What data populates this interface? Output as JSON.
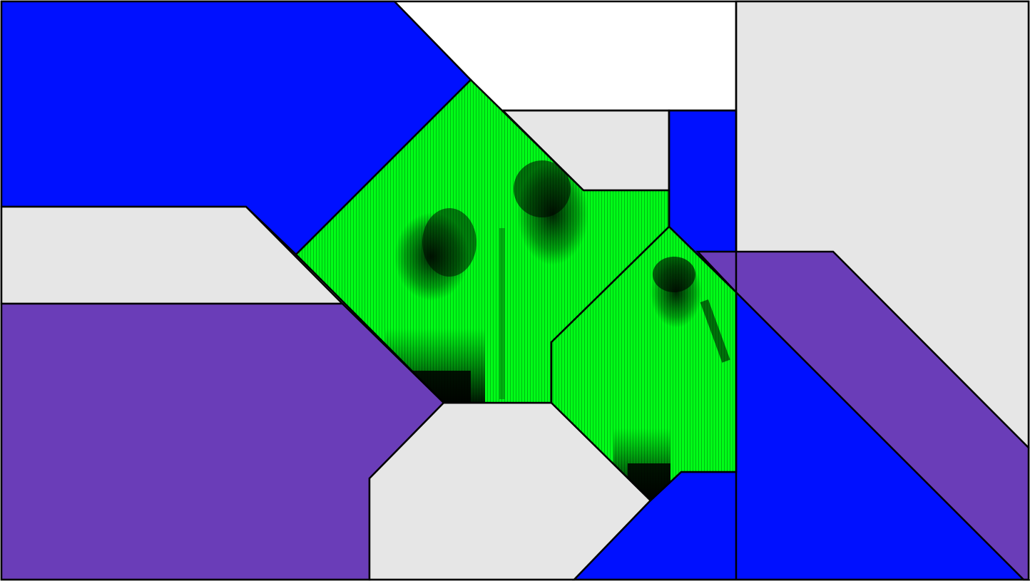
{
  "artwork": {
    "palette": {
      "blue": "#0010ff",
      "purple": "#6a3db8",
      "light_gray": "#e6e6e6",
      "white": "#ffffff",
      "green": "#00ff18",
      "outline": "#000000"
    },
    "shapes": [
      {
        "kind": "blue-panel",
        "color": "blue"
      },
      {
        "kind": "white-panel",
        "color": "white"
      },
      {
        "kind": "gray-panel",
        "color": "light_gray"
      },
      {
        "kind": "purple-panel",
        "color": "purple"
      },
      {
        "kind": "green-photo-panel",
        "color": "green"
      }
    ]
  }
}
